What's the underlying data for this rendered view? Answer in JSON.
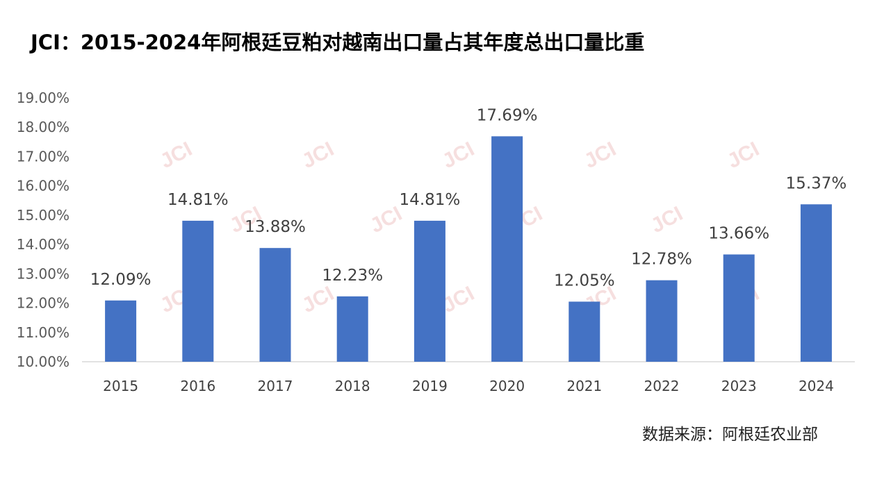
{
  "title": "JCI：2015-2024年阿根廷豆粕对越南出口量占其年度总出口量比重",
  "source": "数据来源：阿根廷农业部",
  "watermark": "JCI",
  "chart_data": {
    "type": "bar",
    "title": "JCI：2015-2024年阿根廷豆粕对越南出口量占其年度总出口量比重",
    "xlabel": "",
    "ylabel": "",
    "categories": [
      "2015",
      "2016",
      "2017",
      "2018",
      "2019",
      "2020",
      "2021",
      "2022",
      "2023",
      "2024"
    ],
    "values": [
      12.09,
      14.81,
      13.88,
      12.23,
      14.81,
      17.69,
      12.05,
      12.78,
      13.66,
      15.37
    ],
    "data_labels": [
      "12.09%",
      "14.81%",
      "13.88%",
      "12.23%",
      "14.81%",
      "17.69%",
      "12.05%",
      "12.78%",
      "13.66%",
      "15.37%"
    ],
    "ylim": [
      10,
      19
    ],
    "yticks": [
      10,
      11,
      12,
      13,
      14,
      15,
      16,
      17,
      18,
      19
    ],
    "ytick_labels": [
      "10.00%",
      "11.00%",
      "12.00%",
      "13.00%",
      "14.00%",
      "15.00%",
      "16.00%",
      "17.00%",
      "18.00%",
      "19.00%"
    ],
    "bar_color": "#4472c4",
    "grid": false,
    "legend": "none"
  }
}
